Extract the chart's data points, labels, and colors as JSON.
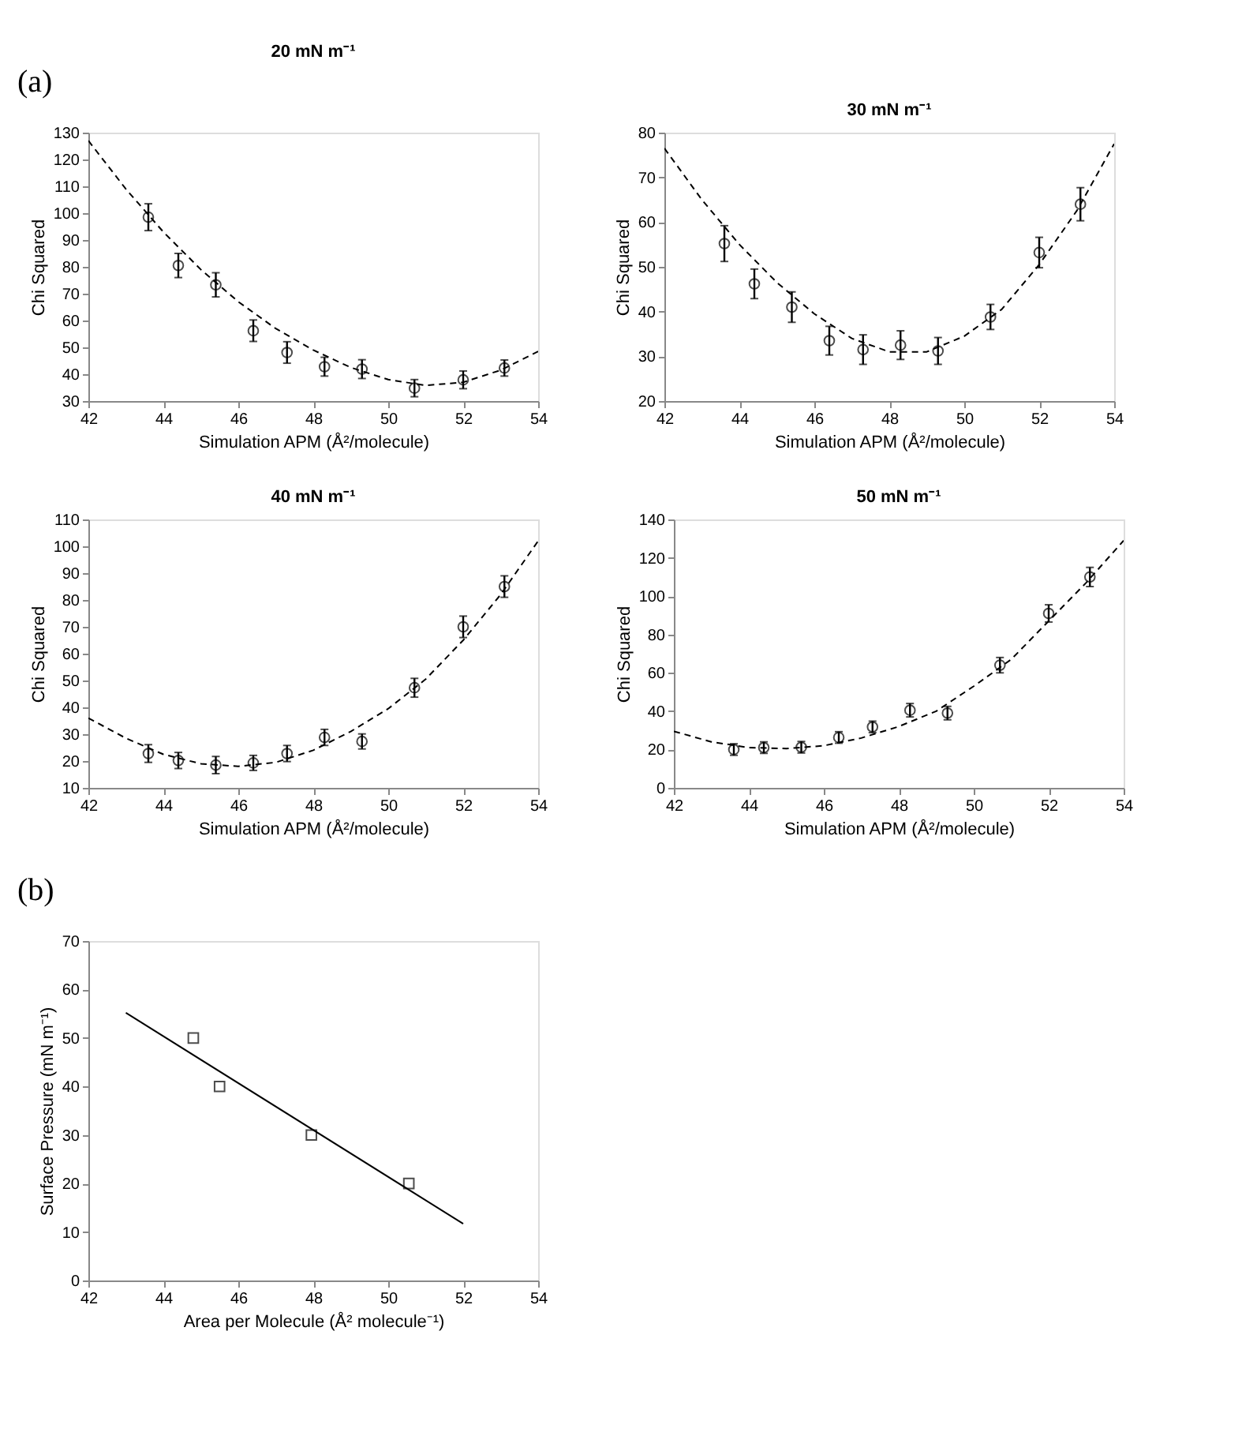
{
  "chart_data": [
    {
      "type": "scatter",
      "title": "20 mN m⁻¹",
      "xlabel": "Simulation APM (Å²/molecule)",
      "ylabel": "Chi Squared",
      "xlim": [
        42,
        54
      ],
      "ylim": [
        30,
        130
      ],
      "xticks": [
        42,
        44,
        46,
        48,
        50,
        52,
        54
      ],
      "yticks": [
        30,
        40,
        50,
        60,
        70,
        80,
        90,
        100,
        110,
        120,
        130
      ],
      "annotations": [
        "(a)"
      ],
      "series": [
        {
          "marker": "circle",
          "color": "#000000",
          "x": [
            43.6,
            44.4,
            45.4,
            46.4,
            47.3,
            48.3,
            49.3,
            50.7,
            52.0,
            53.1
          ],
          "values": [
            98.5,
            80.5,
            73.3,
            56.2,
            48.1,
            42.8,
            41.9,
            34.8,
            37.9,
            42.3
          ],
          "errors": [
            5,
            4.5,
            4.5,
            4,
            4,
            3.5,
            3.5,
            3.2,
            3.3,
            3
          ]
        },
        {
          "type": "line",
          "line_style": "dashed",
          "color": "#000000",
          "x": [
            42,
            43,
            44,
            45,
            46,
            47,
            48,
            49,
            50,
            51,
            52,
            53,
            54
          ],
          "values": [
            127,
            109,
            93,
            79,
            67,
            57,
            49,
            42.5,
            38,
            35.8,
            37,
            41.5,
            48.5
          ]
        }
      ]
    },
    {
      "type": "scatter",
      "title": "30 mN m⁻¹",
      "xlabel": "Simulation APM (Å²/molecule)",
      "ylabel": "Chi Squared",
      "xlim": [
        42,
        54
      ],
      "ylim": [
        20,
        80
      ],
      "xticks": [
        42,
        44,
        46,
        48,
        50,
        52,
        54
      ],
      "yticks": [
        20,
        30,
        40,
        50,
        60,
        70,
        80
      ],
      "series": [
        {
          "marker": "circle",
          "color": "#000000",
          "x": [
            43.6,
            44.4,
            45.4,
            46.4,
            47.3,
            48.3,
            49.3,
            50.7,
            52.0,
            53.1
          ],
          "values": [
            55.2,
            46.2,
            41,
            33.5,
            31.5,
            32.5,
            31.2,
            38.8,
            53.2,
            64
          ],
          "errors": [
            4,
            3.3,
            3.4,
            3.2,
            3.3,
            3.2,
            3,
            2.8,
            3.4,
            3.7
          ]
        },
        {
          "type": "line",
          "line_style": "dashed",
          "color": "#000000",
          "x": [
            42,
            43,
            44,
            45,
            46,
            47,
            48,
            49,
            50,
            51,
            52,
            53,
            54
          ],
          "values": [
            76.5,
            65,
            55,
            46.5,
            39.5,
            34,
            31,
            31,
            34.5,
            40.5,
            50.5,
            62.5,
            77.5
          ]
        }
      ]
    },
    {
      "type": "scatter",
      "title": "40 mN m⁻¹",
      "xlabel": "Simulation APM (Å²/molecule)",
      "ylabel": "Chi Squared",
      "xlim": [
        42,
        54
      ],
      "ylim": [
        10,
        110
      ],
      "xticks": [
        42,
        44,
        46,
        48,
        50,
        52,
        54
      ],
      "yticks": [
        10,
        20,
        30,
        40,
        50,
        60,
        70,
        80,
        90,
        100,
        110
      ],
      "series": [
        {
          "marker": "circle",
          "color": "#000000",
          "x": [
            43.6,
            44.4,
            45.4,
            46.4,
            47.3,
            48.3,
            49.3,
            50.7,
            52.0,
            53.1
          ],
          "values": [
            22.8,
            20.2,
            18.5,
            19.3,
            22.8,
            28.8,
            27.3,
            47.3,
            70,
            85
          ],
          "errors": [
            3.3,
            3,
            3.2,
            2.8,
            3,
            3,
            2.8,
            3.5,
            4,
            4
          ]
        },
        {
          "type": "line",
          "line_style": "dashed",
          "color": "#000000",
          "x": [
            42,
            43,
            44,
            45,
            46,
            47,
            48,
            49,
            50,
            51,
            52,
            53,
            54
          ],
          "values": [
            36,
            28.5,
            22.5,
            19,
            18,
            19.5,
            24,
            31,
            39.5,
            50.5,
            65,
            82,
            102
          ]
        }
      ]
    },
    {
      "type": "scatter",
      "title": "50 mN m⁻¹",
      "xlabel": "Simulation APM (Å²/molecule)",
      "ylabel": "Chi Squared",
      "xlim": [
        42,
        54
      ],
      "ylim": [
        0,
        140
      ],
      "xticks": [
        42,
        44,
        46,
        48,
        50,
        52,
        54
      ],
      "yticks": [
        0,
        20,
        40,
        60,
        80,
        100,
        120,
        140
      ],
      "series": [
        {
          "marker": "circle",
          "color": "#000000",
          "x": [
            43.6,
            44.4,
            45.4,
            46.4,
            47.3,
            48.3,
            49.3,
            50.7,
            52.0,
            53.1
          ],
          "values": [
            20,
            21,
            21.2,
            26.3,
            31.8,
            40.5,
            39,
            64,
            91,
            110
          ],
          "errors": [
            3,
            3,
            3,
            3,
            3,
            3.5,
            3.5,
            4,
            4.5,
            5
          ]
        },
        {
          "type": "line",
          "line_style": "dashed",
          "color": "#000000",
          "x": [
            42,
            43,
            44,
            45,
            46,
            47,
            48,
            49,
            50,
            51,
            52,
            53,
            54
          ],
          "values": [
            29.5,
            24,
            21,
            20.5,
            22,
            26,
            32,
            40,
            53,
            67,
            87,
            107,
            129
          ]
        }
      ]
    },
    {
      "type": "scatter",
      "xlabel": "Area per Molecule (Å² molecule⁻¹)",
      "ylabel": "Surface Pressure (mN m⁻¹)",
      "xlim": [
        42,
        54
      ],
      "ylim": [
        0,
        70
      ],
      "xticks": [
        42,
        44,
        46,
        48,
        50,
        52,
        54
      ],
      "yticks": [
        0,
        10,
        20,
        30,
        40,
        50,
        60,
        70
      ],
      "annotations": [
        "(b)"
      ],
      "series": [
        {
          "marker": "square",
          "color": "#000000",
          "x": [
            44.8,
            45.5,
            47.95,
            50.55
          ],
          "values": [
            50,
            40,
            30,
            20
          ]
        },
        {
          "type": "line",
          "line_style": "solid",
          "color": "#000000",
          "x": [
            43,
            52
          ],
          "values": [
            55.2,
            11.7
          ]
        }
      ]
    }
  ]
}
